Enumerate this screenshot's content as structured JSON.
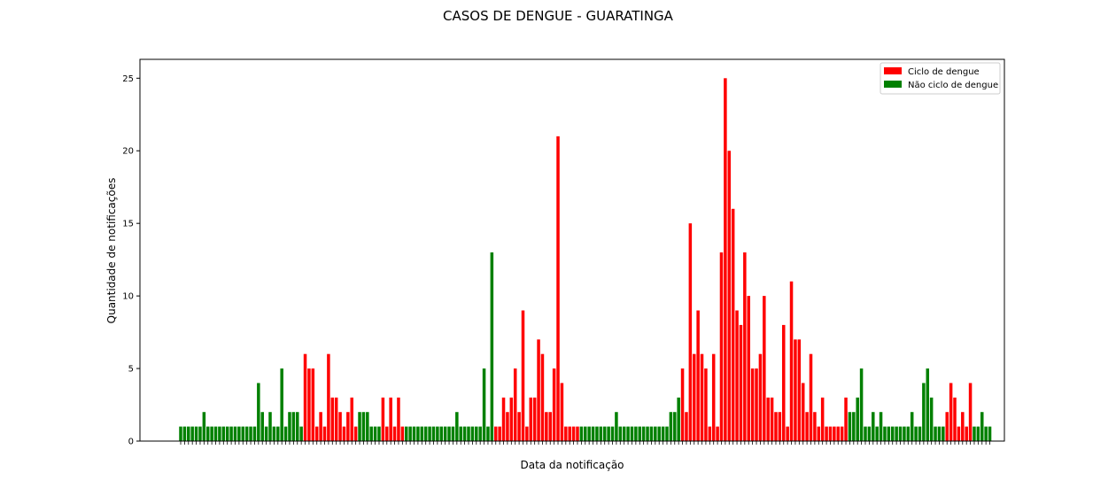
{
  "chart_data": {
    "type": "bar",
    "title": "CASOS DE DENGUE - GUARATINGA",
    "xlabel": "Data da notificação",
    "ylabel": "Quantidade de notificações",
    "ylim": [
      0,
      26.3
    ],
    "yticks": [
      0,
      5,
      10,
      15,
      20,
      25
    ],
    "grid": false,
    "legend_position": "top-right",
    "x_tick_labels_overlapping": true,
    "series": [
      {
        "name": "Ciclo de dengue",
        "color": "#ff0000"
      },
      {
        "name": "Não ciclo de dengue",
        "color": "#008000"
      }
    ],
    "values": [
      1,
      1,
      1,
      1,
      1,
      1,
      2,
      1,
      1,
      1,
      1,
      1,
      1,
      1,
      1,
      1,
      1,
      1,
      1,
      1,
      4,
      2,
      1,
      2,
      1,
      1,
      5,
      1,
      2,
      2,
      2,
      1,
      6,
      5,
      5,
      1,
      2,
      1,
      6,
      3,
      3,
      2,
      1,
      2,
      3,
      1,
      2,
      2,
      2,
      1,
      1,
      1,
      3,
      1,
      3,
      1,
      3,
      1,
      1,
      1,
      1,
      1,
      1,
      1,
      1,
      1,
      1,
      1,
      1,
      1,
      1,
      2,
      1,
      1,
      1,
      1,
      1,
      1,
      5,
      1,
      13,
      1,
      1,
      3,
      2,
      3,
      5,
      2,
      9,
      1,
      3,
      3,
      7,
      6,
      2,
      2,
      5,
      21,
      4,
      1,
      1,
      1,
      1,
      1,
      1,
      1,
      1,
      1,
      1,
      1,
      1,
      1,
      2,
      1,
      1,
      1,
      1,
      1,
      1,
      1,
      1,
      1,
      1,
      1,
      1,
      1,
      2,
      2,
      3,
      5,
      2,
      15,
      6,
      9,
      6,
      5,
      1,
      6,
      1,
      13,
      25,
      20,
      16,
      9,
      8,
      13,
      10,
      5,
      5,
      6,
      10,
      3,
      3,
      2,
      2,
      8,
      1,
      11,
      7,
      7,
      4,
      2,
      6,
      2,
      1,
      3,
      1,
      1,
      1,
      1,
      1,
      3,
      2,
      2,
      3,
      5,
      1,
      1,
      2,
      1,
      2,
      1,
      1,
      1,
      1,
      1,
      1,
      1,
      2,
      1,
      1,
      4,
      5,
      3,
      1,
      1,
      1,
      2,
      4,
      3,
      1,
      2,
      1,
      4,
      1,
      1,
      2,
      1,
      1
    ],
    "cycle": [
      0,
      0,
      0,
      0,
      0,
      0,
      0,
      0,
      0,
      0,
      0,
      0,
      0,
      0,
      0,
      0,
      0,
      0,
      0,
      0,
      0,
      0,
      0,
      0,
      0,
      0,
      0,
      0,
      0,
      0,
      0,
      0,
      1,
      1,
      1,
      1,
      1,
      1,
      1,
      1,
      1,
      1,
      1,
      1,
      1,
      1,
      0,
      0,
      0,
      0,
      0,
      0,
      1,
      1,
      1,
      1,
      1,
      1,
      0,
      0,
      0,
      0,
      0,
      0,
      0,
      0,
      0,
      0,
      0,
      0,
      0,
      0,
      0,
      0,
      0,
      0,
      0,
      0,
      0,
      0,
      0,
      1,
      1,
      1,
      1,
      1,
      1,
      1,
      1,
      1,
      1,
      1,
      1,
      1,
      1,
      1,
      1,
      1,
      1,
      1,
      1,
      1,
      1,
      0,
      0,
      0,
      0,
      0,
      0,
      0,
      0,
      0,
      0,
      0,
      0,
      0,
      0,
      0,
      0,
      0,
      0,
      0,
      0,
      0,
      0,
      0,
      0,
      0,
      0,
      1,
      1,
      1,
      1,
      1,
      1,
      1,
      1,
      1,
      1,
      1,
      1,
      1,
      1,
      1,
      1,
      1,
      1,
      1,
      1,
      1,
      1,
      1,
      1,
      1,
      1,
      1,
      1,
      1,
      1,
      1,
      1,
      1,
      1,
      1,
      1,
      1,
      1,
      1,
      1,
      1,
      1,
      1,
      0,
      0,
      0,
      0,
      0,
      0,
      0,
      0,
      0,
      0,
      0,
      0,
      0,
      0,
      0,
      0,
      0,
      0,
      0,
      0,
      0,
      0,
      0,
      0,
      0,
      1,
      1,
      1,
      1,
      1,
      1,
      1,
      0,
      0,
      0,
      0,
      0,
      0,
      0,
      0,
      0,
      0,
      0
    ]
  }
}
